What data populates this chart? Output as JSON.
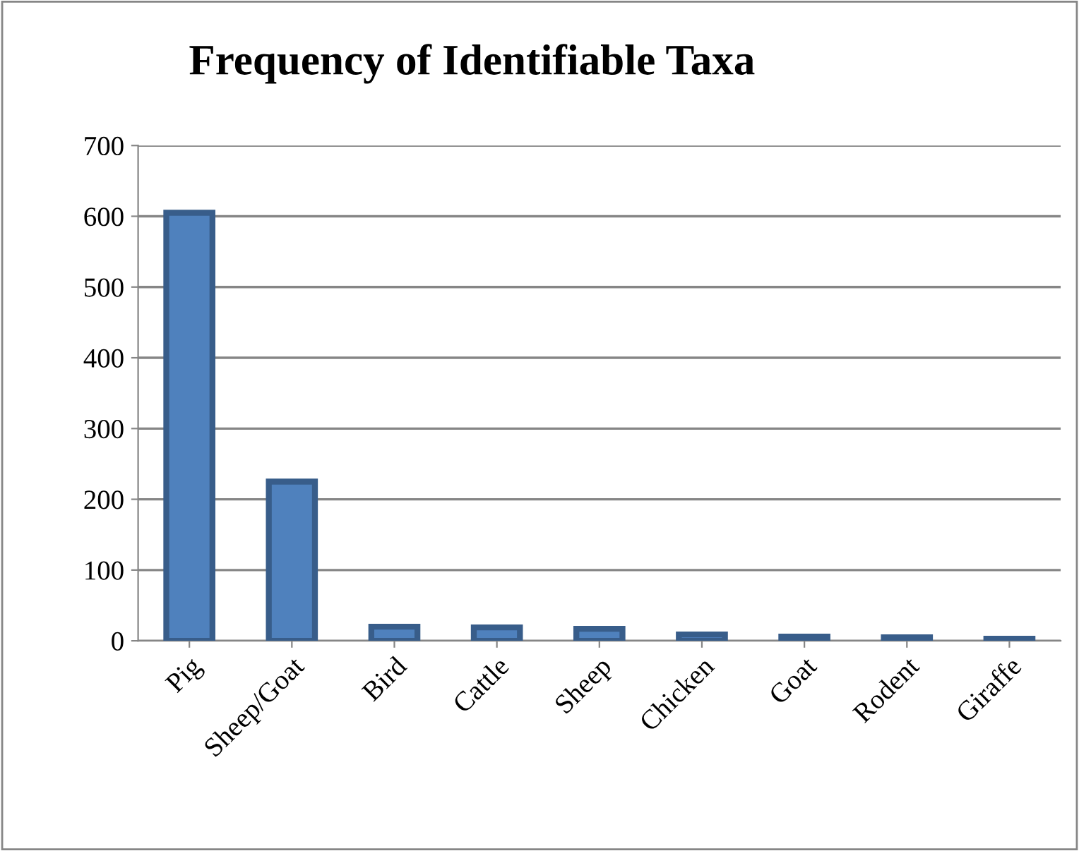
{
  "chart_data": {
    "type": "bar",
    "title": "Frequency of Identifiable Taxa",
    "categories": [
      "Pig",
      "Sheep/Goat",
      "Bird",
      "Cattle",
      "Sheep",
      "Chicken",
      "Goat",
      "Rodent",
      "Giraffe"
    ],
    "values": [
      605,
      225,
      20,
      19,
      17,
      9,
      6,
      5,
      3
    ],
    "color": "#4f81bd",
    "ylim": [
      0,
      700
    ],
    "yticks": [
      0,
      100,
      200,
      300,
      400,
      500,
      600,
      700
    ],
    "grid": "y",
    "legend": false
  }
}
